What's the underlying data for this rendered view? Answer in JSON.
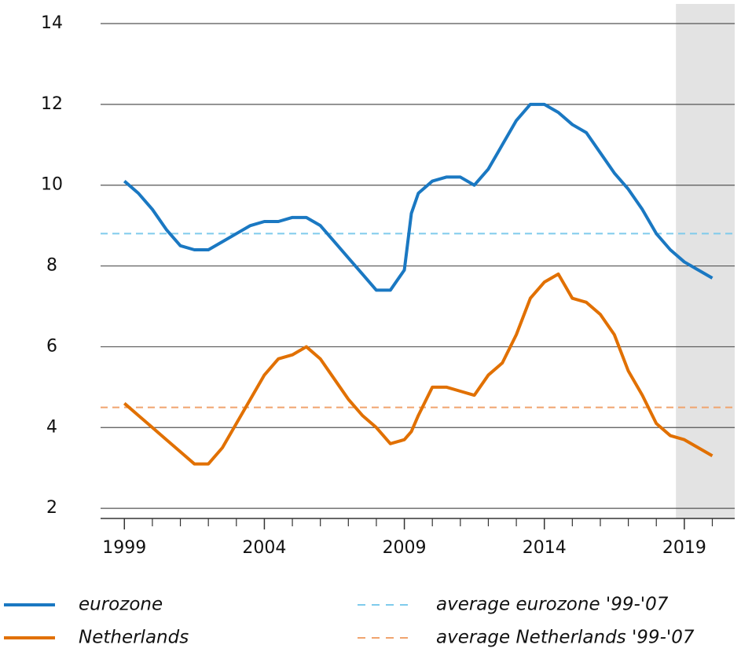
{
  "chart_data": {
    "type": "line",
    "x": [
      1999,
      1999.5,
      2000,
      2000.5,
      2001,
      2001.5,
      2002,
      2002.5,
      2003,
      2003.5,
      2004,
      2004.5,
      2005,
      2005.5,
      2006,
      2006.5,
      2007,
      2007.5,
      2008,
      2008.5,
      2009,
      2009.25,
      2009.5,
      2010,
      2010.5,
      2011,
      2011.5,
      2012,
      2012.5,
      2013,
      2013.5,
      2014,
      2014.5,
      2015,
      2015.5,
      2016,
      2016.5,
      2017,
      2017.5,
      2018,
      2018.5,
      2019,
      2019.5,
      2020
    ],
    "series": [
      {
        "name": "eurozone",
        "color": "#1a78c2",
        "values": [
          10.1,
          9.8,
          9.4,
          8.9,
          8.5,
          8.4,
          8.4,
          8.6,
          8.8,
          9.0,
          9.1,
          9.1,
          9.2,
          9.2,
          9.0,
          8.6,
          8.2,
          7.8,
          7.4,
          7.4,
          7.9,
          9.3,
          9.8,
          10.1,
          10.2,
          10.2,
          10.0,
          10.4,
          11.0,
          11.6,
          12.0,
          12.0,
          11.8,
          11.5,
          11.3,
          10.8,
          10.3,
          9.9,
          9.4,
          8.8,
          8.4,
          8.1,
          7.9,
          7.7
        ]
      },
      {
        "name": "Netherlands",
        "color": "#e17000",
        "values": [
          4.6,
          4.3,
          4.0,
          3.7,
          3.4,
          3.1,
          3.1,
          3.5,
          4.1,
          4.7,
          5.3,
          5.7,
          5.8,
          6.0,
          5.7,
          5.2,
          4.7,
          4.3,
          4.0,
          3.6,
          3.7,
          3.9,
          4.3,
          5.0,
          5.0,
          4.9,
          4.8,
          5.3,
          5.6,
          6.3,
          7.2,
          7.6,
          7.8,
          7.2,
          7.1,
          6.8,
          6.3,
          5.4,
          4.8,
          4.1,
          3.8,
          3.7,
          3.5,
          3.3
        ]
      }
    ],
    "reference_lines": [
      {
        "name": "average eurozone '99-'07",
        "color": "#7fcbec",
        "value": 8.8
      },
      {
        "name": "average Netherlands '99-'07",
        "color": "#f0a46e",
        "value": 4.5
      }
    ],
    "shaded_from": 2018.7,
    "xlim": [
      1998.15,
      2020.8
    ],
    "xticks": [
      1999,
      2004,
      2009,
      2014,
      2019
    ],
    "xminor_step": 1,
    "ylim": [
      1.75,
      14
    ],
    "yticks": [
      2,
      4,
      6,
      8,
      10,
      12,
      14
    ],
    "grid": true
  }
}
